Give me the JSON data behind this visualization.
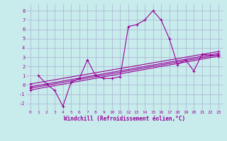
{
  "background_color": "#c8ecec",
  "grid_color": "#b0b8d8",
  "line_color": "#990099",
  "xlabel": "Windchill (Refroidissement éolien,°C)",
  "xlim": [
    -0.5,
    23.5
  ],
  "ylim": [
    -2.7,
    8.7
  ],
  "yticks": [
    -2,
    -1,
    0,
    1,
    2,
    3,
    4,
    5,
    6,
    7,
    8
  ],
  "xticks": [
    0,
    1,
    2,
    3,
    4,
    5,
    6,
    7,
    8,
    9,
    10,
    11,
    12,
    13,
    14,
    15,
    16,
    17,
    18,
    19,
    20,
    21,
    22,
    23
  ],
  "series1_x": [
    1,
    2,
    3,
    4,
    5,
    6,
    7,
    8,
    9,
    10,
    11,
    12,
    13,
    14,
    15,
    16,
    17,
    18,
    19,
    20,
    21,
    22,
    23
  ],
  "series1_y": [
    1.0,
    0.1,
    -0.6,
    -2.3,
    0.3,
    0.7,
    2.7,
    1.0,
    0.7,
    0.7,
    0.9,
    6.3,
    6.5,
    7.0,
    8.0,
    7.0,
    5.0,
    2.2,
    2.7,
    1.5,
    3.3,
    3.2,
    3.2
  ],
  "reg_lines": [
    {
      "x": [
        0,
        23
      ],
      "y": [
        -0.55,
        3.1
      ]
    },
    {
      "x": [
        0,
        23
      ],
      "y": [
        -0.35,
        3.25
      ]
    },
    {
      "x": [
        0,
        23
      ],
      "y": [
        -0.2,
        3.4
      ]
    },
    {
      "x": [
        0,
        23
      ],
      "y": [
        0.1,
        3.6
      ]
    }
  ]
}
